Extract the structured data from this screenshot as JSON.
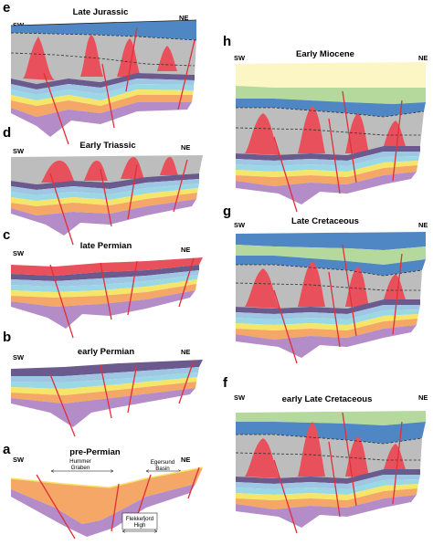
{
  "panels": {
    "a": {
      "letter": "a",
      "title": "pre-Permian",
      "sw": "SW",
      "ne": "NE",
      "labels": {
        "hummer_1": "Hummer",
        "hummer_2": "Graben",
        "egersund_1": "Egersund",
        "egersund_2": "Basin",
        "flekke_1": "Flekkefjord",
        "flekke_2": "High"
      }
    },
    "b": {
      "letter": "b",
      "title": "early Permian",
      "sw": "SW",
      "ne": "NE"
    },
    "c": {
      "letter": "c",
      "title": "late Permian",
      "sw": "SW",
      "ne": "NE"
    },
    "d": {
      "letter": "d",
      "title": "Early Triassic",
      "sw": "SW",
      "ne": "NE"
    },
    "e": {
      "letter": "e",
      "title": "Late Jurassic",
      "sw": "SW",
      "ne": "NE"
    },
    "f": {
      "letter": "f",
      "title": "early Late Cretaceous",
      "sw": "SW",
      "ne": "NE"
    },
    "g": {
      "letter": "g",
      "title": "Late Cretaceous",
      "sw": "SW",
      "ne": "NE"
    },
    "h": {
      "letter": "h",
      "title": "Early Miocene",
      "sw": "SW",
      "ne": "NE"
    }
  },
  "colors": {
    "purple": "#b48cc8",
    "orange": "#f4a766",
    "yellow": "#f5e66a",
    "cyan": "#9bd8e6",
    "lightblue": "#9fc6e2",
    "darkpurple": "#6a5a8e",
    "grey": "#bdbdbd",
    "salt": "#e8505b",
    "jurassic_blue": "#4f86c4",
    "cretaceous_green": "#b5d99c",
    "miocene_yellow": "#fbf6c4",
    "fault": "#e0303a"
  }
}
